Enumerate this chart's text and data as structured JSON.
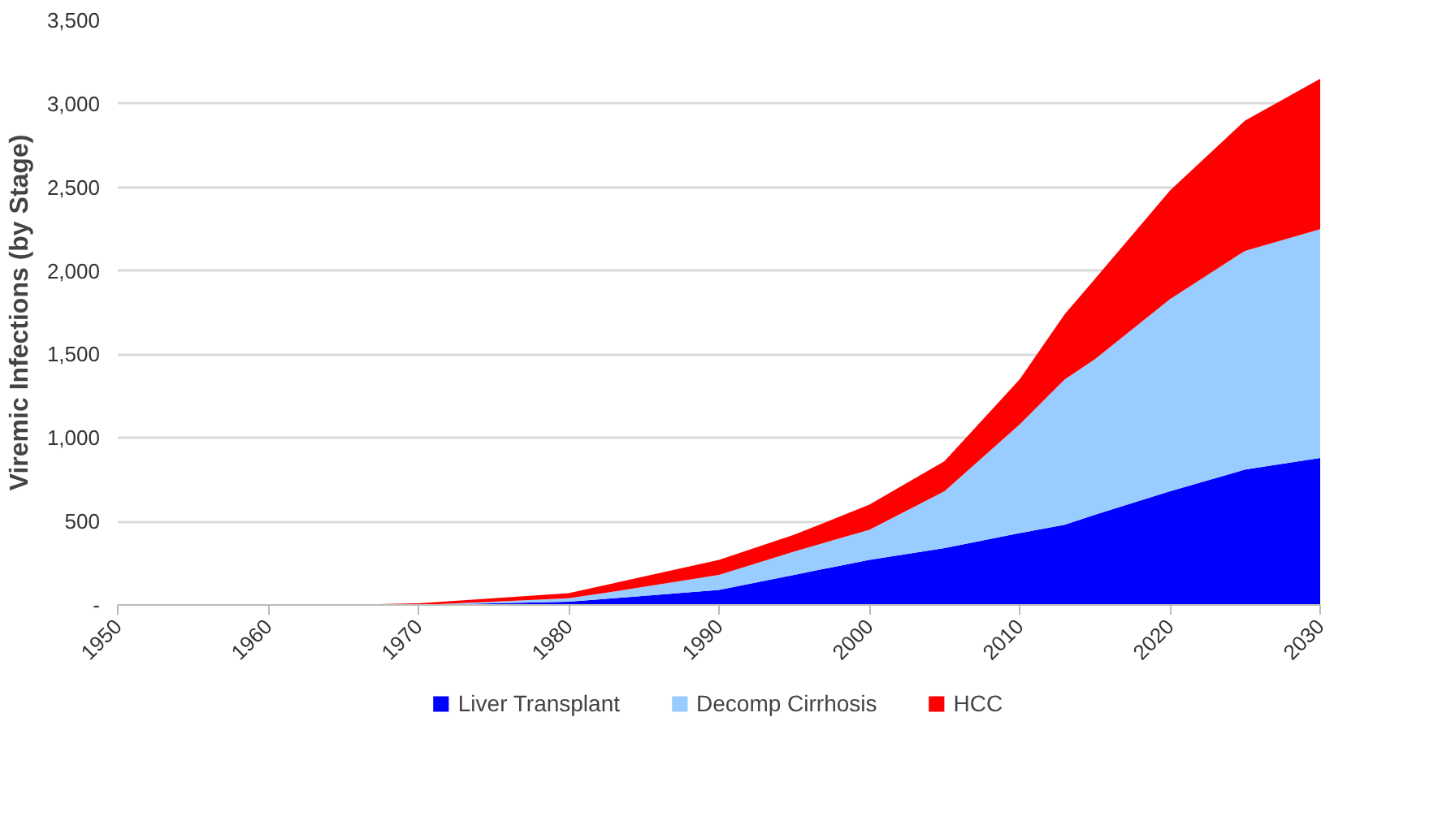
{
  "chart_data": {
    "type": "area",
    "stacked": true,
    "ylabel": "Viremic Infections (by Stage)",
    "x": [
      1950,
      1960,
      1965,
      1970,
      1975,
      1980,
      1983,
      1990,
      1995,
      2000,
      2005,
      2010,
      2013,
      2015,
      2020,
      2025,
      2030
    ],
    "series": [
      {
        "name": "Liver Transplant",
        "color": "#0000ff",
        "values": [
          0,
          0,
          0,
          0,
          10,
          20,
          40,
          90,
          180,
          270,
          340,
          430,
          480,
          540,
          680,
          810,
          880
        ]
      },
      {
        "name": "Decomp Cirrhosis",
        "color": "#99ccff",
        "values": [
          0,
          0,
          0,
          0,
          10,
          20,
          40,
          90,
          140,
          180,
          340,
          650,
          870,
          930,
          1150,
          1310,
          1370
        ]
      },
      {
        "name": "HCC",
        "color": "#ff0000",
        "values": [
          0,
          0,
          0,
          10,
          20,
          30,
          50,
          90,
          100,
          150,
          180,
          270,
          390,
          480,
          650,
          780,
          900
        ]
      }
    ],
    "xlim": [
      1950,
      2030
    ],
    "xticks": [
      1950,
      1960,
      1970,
      1980,
      1990,
      2000,
      2010,
      2020,
      2030
    ],
    "ylim": [
      0,
      3500
    ],
    "yticks": [
      {
        "value": 0,
        "label": "-"
      },
      500,
      {
        "value": 1000,
        "label": "1,000"
      },
      {
        "value": 1500,
        "label": "1,500"
      },
      {
        "value": 2000,
        "label": "2,000"
      },
      {
        "value": 2500,
        "label": "2,500"
      },
      {
        "value": 3000,
        "label": "3,000"
      },
      {
        "value": 3500,
        "label": "3,500"
      }
    ],
    "grid": "y",
    "legend": "bottom"
  }
}
